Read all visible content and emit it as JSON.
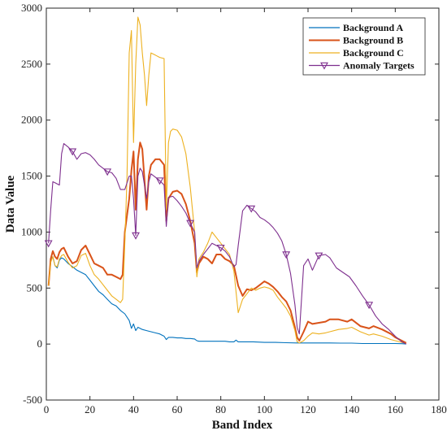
{
  "chart_data": {
    "type": "line",
    "xlabel": "Band Index",
    "ylabel": "Data Value",
    "xlim": [
      0,
      180
    ],
    "ylim": [
      -500,
      3000
    ],
    "xticks": [
      0,
      20,
      40,
      60,
      80,
      100,
      120,
      140,
      160,
      180
    ],
    "yticks": [
      -500,
      0,
      500,
      1000,
      1500,
      2000,
      2500,
      3000
    ],
    "grid": false,
    "legend_position": "top-right",
    "series": [
      {
        "name": "Background A",
        "color": "#0072BD",
        "marker": "none",
        "x": [
          1,
          2,
          3,
          4,
          5,
          6,
          7,
          8,
          10,
          12,
          14,
          16,
          18,
          20,
          22,
          24,
          26,
          28,
          30,
          32,
          34,
          36,
          38,
          39,
          40,
          41,
          42,
          44,
          46,
          48,
          50,
          52,
          54,
          55,
          56,
          58,
          60,
          62,
          64,
          66,
          68,
          69,
          70,
          72,
          74,
          76,
          78,
          80,
          82,
          84,
          86,
          87,
          88,
          90,
          95,
          100,
          105,
          110,
          115,
          120,
          125,
          130,
          135,
          140,
          145,
          150,
          155,
          160,
          163,
          165
        ],
        "y": [
          520,
          740,
          780,
          700,
          680,
          750,
          770,
          760,
          720,
          690,
          660,
          640,
          620,
          570,
          520,
          470,
          440,
          400,
          360,
          340,
          300,
          270,
          210,
          140,
          180,
          120,
          150,
          130,
          120,
          110,
          100,
          90,
          70,
          40,
          60,
          60,
          55,
          55,
          50,
          50,
          45,
          30,
          25,
          25,
          25,
          25,
          25,
          25,
          25,
          20,
          20,
          35,
          20,
          20,
          20,
          15,
          15,
          12,
          10,
          10,
          10,
          10,
          8,
          8,
          5,
          5,
          5,
          5,
          3,
          0
        ]
      },
      {
        "name": "Background B",
        "color": "#D95319",
        "marker": "none",
        "x": [
          1,
          2,
          3,
          4,
          5,
          6,
          7,
          8,
          10,
          12,
          14,
          16,
          18,
          20,
          22,
          24,
          26,
          28,
          30,
          32,
          34,
          35,
          36,
          38,
          39,
          40,
          41,
          42,
          43,
          44,
          46,
          47,
          48,
          50,
          52,
          54,
          55,
          56,
          58,
          60,
          62,
          64,
          66,
          68,
          69,
          70,
          72,
          74,
          76,
          78,
          80,
          82,
          84,
          86,
          88,
          90,
          92,
          94,
          96,
          98,
          100,
          102,
          104,
          106,
          108,
          110,
          112,
          114,
          115,
          116,
          118,
          120,
          122,
          125,
          128,
          130,
          134,
          138,
          140,
          144,
          148,
          150,
          154,
          158,
          160,
          163,
          165
        ],
        "y": [
          520,
          760,
          830,
          780,
          760,
          820,
          850,
          860,
          780,
          720,
          740,
          840,
          880,
          800,
          720,
          700,
          680,
          620,
          620,
          600,
          580,
          620,
          1000,
          1300,
          1550,
          1720,
          1200,
          1650,
          1800,
          1740,
          1200,
          1500,
          1600,
          1650,
          1650,
          1600,
          1100,
          1300,
          1360,
          1370,
          1340,
          1250,
          1100,
          900,
          640,
          720,
          780,
          760,
          720,
          800,
          800,
          760,
          740,
          700,
          520,
          430,
          490,
          480,
          500,
          530,
          560,
          540,
          510,
          470,
          420,
          380,
          300,
          150,
          60,
          30,
          110,
          200,
          180,
          190,
          200,
          220,
          220,
          200,
          220,
          160,
          140,
          160,
          130,
          90,
          60,
          30,
          10
        ]
      },
      {
        "name": "Background C",
        "color": "#EDB120",
        "marker": "none",
        "x": [
          1,
          2,
          3,
          4,
          5,
          6,
          7,
          8,
          10,
          12,
          14,
          16,
          18,
          20,
          22,
          24,
          26,
          28,
          30,
          32,
          34,
          35,
          36,
          37,
          38,
          39,
          40,
          41,
          42,
          43,
          44,
          45,
          46,
          47,
          48,
          50,
          52,
          54,
          55,
          56,
          57,
          58,
          60,
          62,
          64,
          66,
          68,
          69,
          70,
          72,
          74,
          76,
          78,
          80,
          82,
          84,
          86,
          88,
          90,
          92,
          94,
          96,
          98,
          100,
          102,
          104,
          106,
          108,
          110,
          112,
          114,
          115,
          116,
          118,
          120,
          122,
          125,
          128,
          130,
          134,
          138,
          140,
          144,
          148,
          150,
          154,
          158,
          160,
          163,
          165
        ],
        "y": [
          520,
          730,
          780,
          700,
          690,
          760,
          790,
          800,
          730,
          680,
          700,
          790,
          810,
          700,
          620,
          580,
          530,
          480,
          430,
          400,
          370,
          400,
          900,
          1500,
          2600,
          2800,
          1800,
          2500,
          2920,
          2850,
          2600,
          2400,
          2130,
          2400,
          2600,
          2580,
          2560,
          2550,
          1200,
          1800,
          1900,
          1920,
          1910,
          1850,
          1700,
          1400,
          1000,
          600,
          760,
          820,
          900,
          1000,
          950,
          900,
          850,
          800,
          650,
          280,
          400,
          450,
          500,
          480,
          500,
          510,
          500,
          480,
          420,
          370,
          320,
          250,
          120,
          20,
          10,
          30,
          70,
          100,
          90,
          100,
          110,
          130,
          140,
          150,
          110,
          80,
          90,
          70,
          40,
          30,
          15,
          5
        ]
      },
      {
        "name": "Anomaly Targets",
        "color": "#7E2F8E",
        "marker": "triangle-down",
        "x": [
          1,
          2,
          3,
          4,
          6,
          7,
          8,
          10,
          12,
          14,
          16,
          18,
          20,
          22,
          24,
          26,
          28,
          30,
          32,
          34,
          36,
          38,
          39,
          40,
          41,
          42,
          43,
          44,
          46,
          47,
          48,
          50,
          52,
          54,
          55,
          56,
          58,
          60,
          62,
          64,
          66,
          68,
          69,
          70,
          72,
          74,
          76,
          78,
          80,
          82,
          84,
          86,
          87,
          88,
          90,
          92,
          94,
          96,
          98,
          100,
          102,
          104,
          106,
          108,
          110,
          112,
          114,
          115,
          116,
          118,
          120,
          122,
          125,
          128,
          130,
          133,
          136,
          139,
          142,
          145,
          148,
          151,
          154,
          157,
          160,
          163,
          165
        ],
        "y": [
          900,
          1200,
          1450,
          1440,
          1420,
          1700,
          1790,
          1760,
          1720,
          1650,
          1700,
          1710,
          1690,
          1650,
          1600,
          1570,
          1540,
          1530,
          1480,
          1380,
          1380,
          1500,
          1500,
          1300,
          970,
          1500,
          1570,
          1540,
          1300,
          1450,
          1520,
          1490,
          1460,
          1420,
          1050,
          1310,
          1320,
          1280,
          1230,
          1170,
          1080,
          1000,
          680,
          740,
          800,
          850,
          900,
          880,
          860,
          830,
          780,
          690,
          710,
          880,
          1190,
          1240,
          1210,
          1180,
          1130,
          1110,
          1080,
          1040,
          990,
          920,
          800,
          630,
          350,
          150,
          90,
          700,
          760,
          660,
          790,
          800,
          770,
          680,
          640,
          600,
          520,
          430,
          350,
          250,
          180,
          130,
          70,
          20,
          0
        ]
      }
    ]
  }
}
